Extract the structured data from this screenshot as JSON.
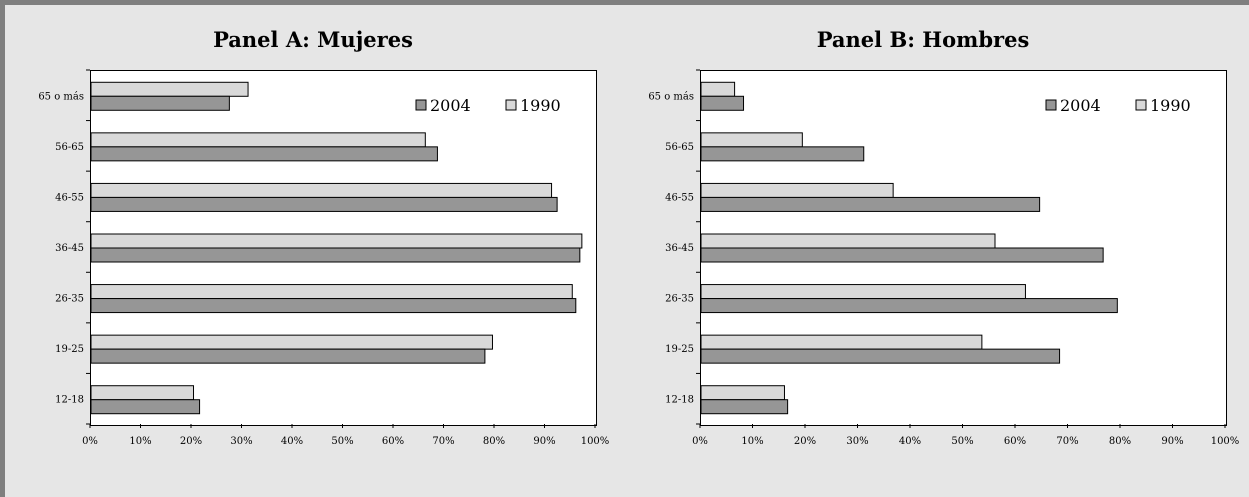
{
  "chart_data": [
    {
      "type": "bar",
      "orientation": "horizontal",
      "title": "Panel A: Mujeres",
      "categories": [
        "12-18",
        "19-25",
        "26-35",
        "36-45",
        "46-55",
        "56-65",
        "65 o más"
      ],
      "series": [
        {
          "name": "2004",
          "color": "#969696",
          "values": [
            21.5,
            78,
            96,
            96.8,
            92.3,
            68.6,
            27.4
          ]
        },
        {
          "name": "1990",
          "color": "#d9d9d9",
          "values": [
            20.3,
            79.5,
            95.3,
            97.2,
            91.2,
            66.2,
            31.1
          ]
        }
      ],
      "xlim": [
        0,
        100
      ],
      "xticks": [
        "0%",
        "10%",
        "20%",
        "30%",
        "40%",
        "50%",
        "60%",
        "70%",
        "80%",
        "90%",
        "100%"
      ],
      "legend": "top-right",
      "grid": false
    },
    {
      "type": "bar",
      "orientation": "horizontal",
      "title": "Panel B: Hombres",
      "categories": [
        "12-18",
        "19-25",
        "26-35",
        "36-45",
        "46-55",
        "56-65",
        "65 o más"
      ],
      "series": [
        {
          "name": "2004",
          "color": "#969696",
          "values": [
            16.5,
            68.3,
            79.3,
            76.6,
            64.5,
            31.0,
            8.1
          ]
        },
        {
          "name": "1990",
          "color": "#d9d9d9",
          "values": [
            15.9,
            53.5,
            61.8,
            56.0,
            36.6,
            19.3,
            6.4
          ]
        }
      ],
      "xlim": [
        0,
        100
      ],
      "xticks": [
        "0%",
        "10%",
        "20%",
        "30%",
        "40%",
        "50%",
        "60%",
        "70%",
        "80%",
        "90%",
        "100%"
      ],
      "legend": "top-right",
      "grid": false
    }
  ]
}
